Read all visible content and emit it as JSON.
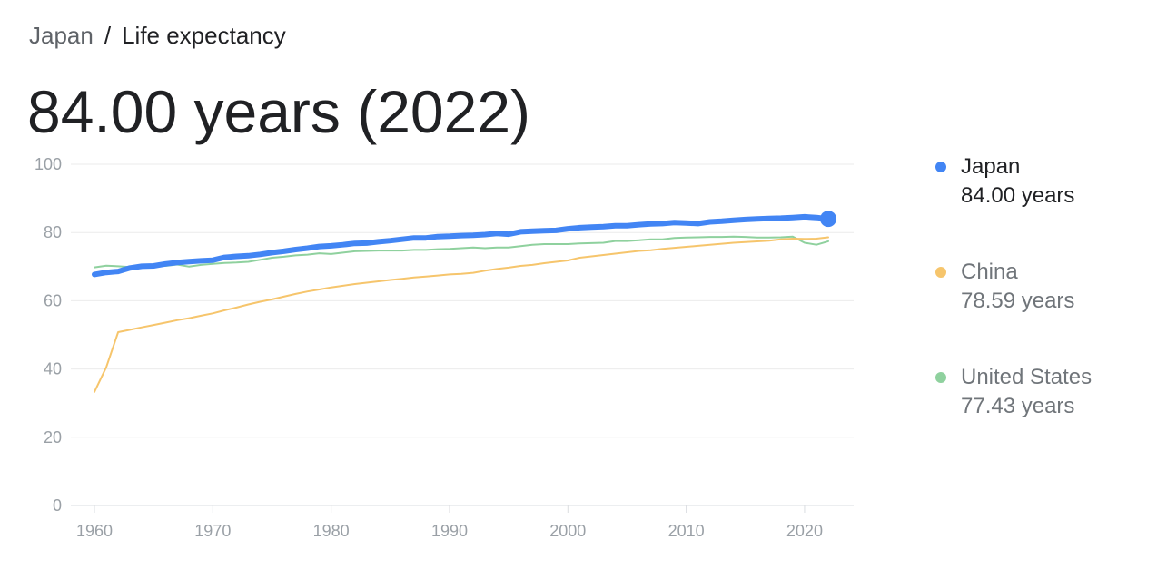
{
  "breadcrumb": {
    "parent": "Japan",
    "separator": "/",
    "current": "Life expectancy"
  },
  "headline": "84.00 years (2022)",
  "legend": [
    {
      "name": "Japan",
      "value": "84.00 years",
      "color": "#4285f4",
      "active": true
    },
    {
      "name": "China",
      "value": "78.59 years",
      "color": "#f6c56c",
      "active": false
    },
    {
      "name": "United States",
      "value": "77.43 years",
      "color": "#8fd19e",
      "active": false
    }
  ],
  "chart_data": {
    "type": "line",
    "title": "",
    "xlabel": "",
    "ylabel": "",
    "xlim": [
      1960,
      2022
    ],
    "ylim": [
      0,
      100
    ],
    "x_ticks": [
      1960,
      1970,
      1980,
      1990,
      2000,
      2010,
      2020
    ],
    "y_ticks": [
      0,
      20,
      40,
      60,
      80,
      100
    ],
    "grid": true,
    "legend_position": "right",
    "series": [
      {
        "name": "Japan",
        "color": "#4285f4",
        "x": [
          1960,
          1961,
          1962,
          1963,
          1964,
          1965,
          1966,
          1967,
          1968,
          1969,
          1970,
          1971,
          1972,
          1973,
          1974,
          1975,
          1976,
          1977,
          1978,
          1979,
          1980,
          1981,
          1982,
          1983,
          1984,
          1985,
          1986,
          1987,
          1988,
          1989,
          1990,
          1991,
          1992,
          1993,
          1994,
          1995,
          1996,
          1997,
          1998,
          1999,
          2000,
          2001,
          2002,
          2003,
          2004,
          2005,
          2006,
          2007,
          2008,
          2009,
          2010,
          2011,
          2012,
          2013,
          2014,
          2015,
          2016,
          2017,
          2018,
          2019,
          2020,
          2021,
          2022
        ],
        "y": [
          67.7,
          68.3,
          68.6,
          69.6,
          70.1,
          70.2,
          70.8,
          71.2,
          71.5,
          71.7,
          71.9,
          72.7,
          73.0,
          73.2,
          73.6,
          74.1,
          74.5,
          75.0,
          75.4,
          75.9,
          76.1,
          76.4,
          76.8,
          76.9,
          77.3,
          77.6,
          78.0,
          78.4,
          78.4,
          78.8,
          78.9,
          79.1,
          79.2,
          79.4,
          79.7,
          79.5,
          80.2,
          80.4,
          80.5,
          80.6,
          81.1,
          81.4,
          81.6,
          81.7,
          82.0,
          82.0,
          82.3,
          82.5,
          82.6,
          82.9,
          82.8,
          82.6,
          83.1,
          83.3,
          83.6,
          83.8,
          84.0,
          84.1,
          84.2,
          84.4,
          84.6,
          84.4,
          84.0
        ]
      },
      {
        "name": "China",
        "color": "#f6c56c",
        "x": [
          1960,
          1961,
          1962,
          1963,
          1964,
          1965,
          1966,
          1967,
          1968,
          1969,
          1970,
          1971,
          1972,
          1973,
          1974,
          1975,
          1976,
          1977,
          1978,
          1979,
          1980,
          1981,
          1982,
          1983,
          1984,
          1985,
          1986,
          1987,
          1988,
          1989,
          1990,
          1991,
          1992,
          1993,
          1994,
          1995,
          1996,
          1997,
          1998,
          1999,
          2000,
          2001,
          2002,
          2003,
          2004,
          2005,
          2006,
          2007,
          2008,
          2009,
          2010,
          2011,
          2012,
          2013,
          2014,
          2015,
          2016,
          2017,
          2018,
          2019,
          2020,
          2021,
          2022
        ],
        "y": [
          33.3,
          40.5,
          50.8,
          51.5,
          52.2,
          52.9,
          53.6,
          54.3,
          54.9,
          55.6,
          56.3,
          57.2,
          58.0,
          58.9,
          59.7,
          60.4,
          61.2,
          62.0,
          62.7,
          63.3,
          63.9,
          64.4,
          64.9,
          65.3,
          65.7,
          66.1,
          66.4,
          66.8,
          67.1,
          67.4,
          67.7,
          67.9,
          68.2,
          68.8,
          69.3,
          69.7,
          70.2,
          70.5,
          71.0,
          71.4,
          71.8,
          72.6,
          73.0,
          73.4,
          73.8,
          74.2,
          74.6,
          74.8,
          75.2,
          75.5,
          75.8,
          76.1,
          76.4,
          76.7,
          77.0,
          77.2,
          77.4,
          77.6,
          78.0,
          78.2,
          78.1,
          78.2,
          78.59
        ]
      },
      {
        "name": "United States",
        "color": "#8fd19e",
        "x": [
          1960,
          1961,
          1962,
          1963,
          1964,
          1965,
          1966,
          1967,
          1968,
          1969,
          1970,
          1971,
          1972,
          1973,
          1974,
          1975,
          1976,
          1977,
          1978,
          1979,
          1980,
          1981,
          1982,
          1983,
          1984,
          1985,
          1986,
          1987,
          1988,
          1989,
          1990,
          1991,
          1992,
          1993,
          1994,
          1995,
          1996,
          1997,
          1998,
          1999,
          2000,
          2001,
          2002,
          2003,
          2004,
          2005,
          2006,
          2007,
          2008,
          2009,
          2010,
          2011,
          2012,
          2013,
          2014,
          2015,
          2016,
          2017,
          2018,
          2019,
          2020,
          2021,
          2022
        ],
        "y": [
          69.8,
          70.3,
          70.1,
          69.9,
          70.2,
          70.2,
          70.2,
          70.6,
          70.0,
          70.5,
          70.8,
          71.1,
          71.2,
          71.4,
          72.0,
          72.6,
          72.9,
          73.3,
          73.5,
          73.9,
          73.7,
          74.1,
          74.5,
          74.6,
          74.7,
          74.7,
          74.7,
          74.9,
          74.9,
          75.1,
          75.2,
          75.4,
          75.6,
          75.4,
          75.6,
          75.6,
          76.0,
          76.4,
          76.6,
          76.6,
          76.6,
          76.8,
          76.9,
          77.0,
          77.5,
          77.5,
          77.7,
          78.0,
          78.0,
          78.4,
          78.5,
          78.6,
          78.7,
          78.7,
          78.8,
          78.7,
          78.5,
          78.5,
          78.6,
          78.8,
          77.0,
          76.4,
          77.43
        ]
      }
    ]
  }
}
